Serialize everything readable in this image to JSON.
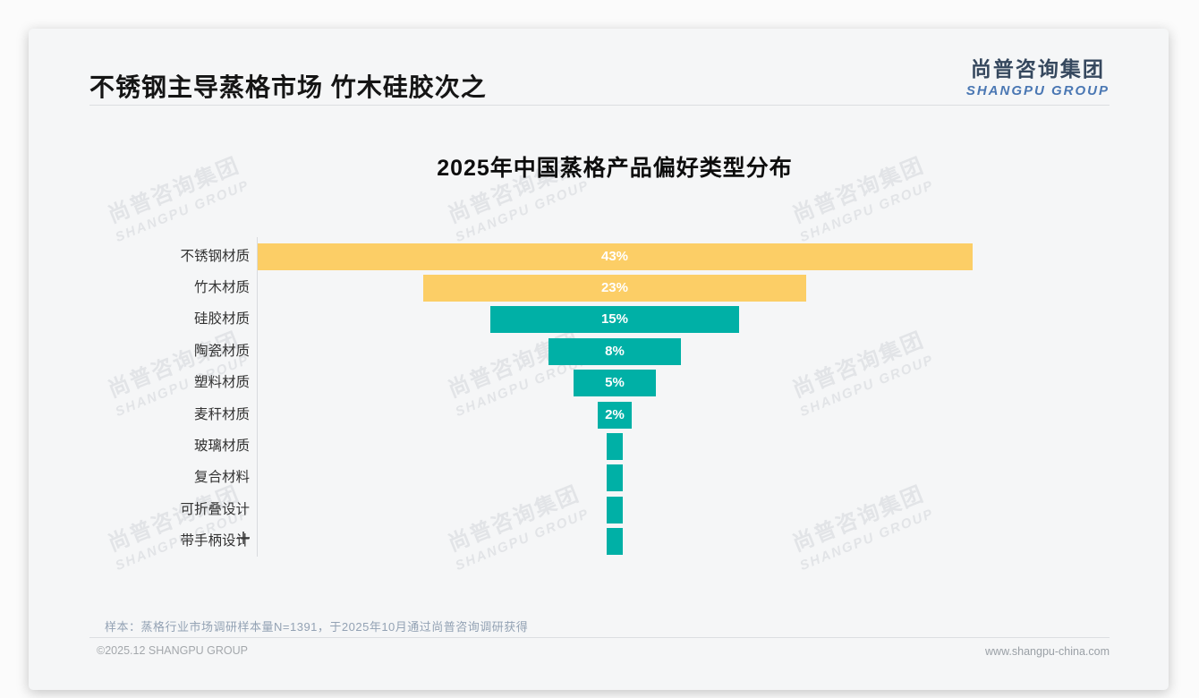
{
  "page": {
    "header": {
      "title": "不锈钢主导蒸格市场 竹木硅胶次之"
    },
    "logo": {
      "cn": "尚普咨询集团",
      "en": "SHANGPU GROUP"
    },
    "watermark": {
      "line1": "尚普咨询集团",
      "line2": "SHANGPU GROUP"
    },
    "note": "样本：蒸格行业市场调研样本量N=1391，于2025年10月通过尚普咨询调研获得",
    "footer": {
      "left": "©2025.12 SHANGPU GROUP",
      "right": "www.shangpu-china.com"
    }
  },
  "chart_data": {
    "type": "bar",
    "subtype": "horizontal-centered-funnel",
    "title": "2025年中国蒸格产品偏好类型分布",
    "categories": [
      "不锈钢材质",
      "竹木材质",
      "硅胶材质",
      "陶瓷材质",
      "塑料材质",
      "麦秆材质",
      "玻璃材质",
      "复合材料",
      "可折叠设计",
      "带手柄设计"
    ],
    "values": [
      43,
      23,
      15,
      8,
      5,
      2,
      1,
      1,
      1,
      1
    ],
    "value_labels": [
      "43%",
      "23%",
      "15%",
      "8%",
      "5%",
      "2%",
      "",
      "",
      "",
      ""
    ],
    "bar_colors": [
      "#FCCE66",
      "#FCCE66",
      "#00B0A6",
      "#00B0A6",
      "#00B0A6",
      "#00B0A6",
      "#00B0A6",
      "#00B0A6",
      "#00B0A6",
      "#00B0A6"
    ],
    "value_unit": "percent",
    "xlim": [
      0,
      43
    ],
    "grid": false,
    "legend": false,
    "value_label_color": "#ffffff",
    "accent_yellow": "#FCCE66",
    "accent_teal": "#00B0A6"
  }
}
